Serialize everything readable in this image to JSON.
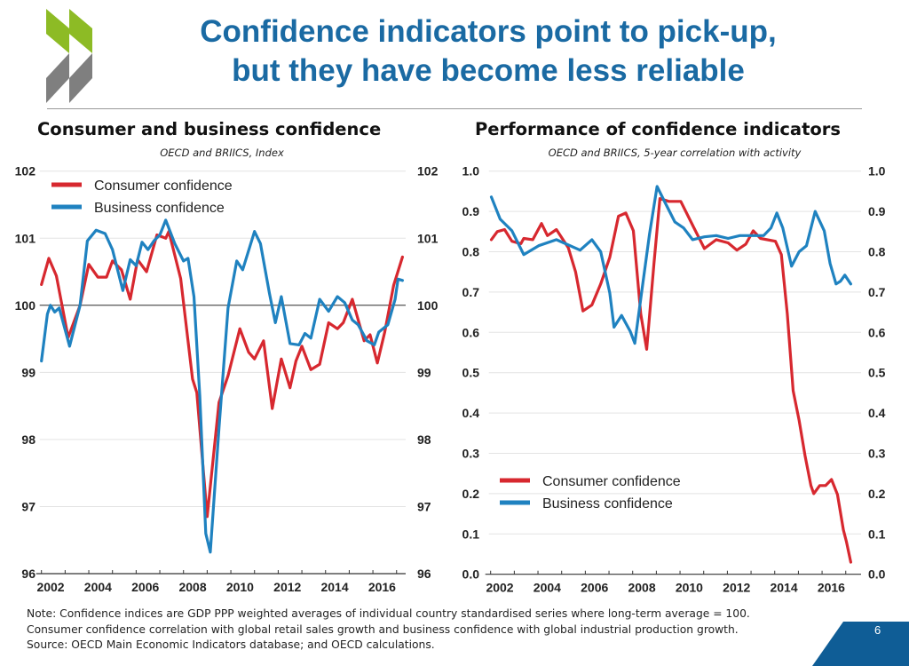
{
  "header": {
    "title_line1": "Confidence indicators point to pick-up,",
    "title_line2": "but they have become less reliable",
    "logo_colors": {
      "green": "#8dbb25",
      "grey": "#7f7f7f"
    }
  },
  "footer": {
    "note_lines": [
      "Note: Confidence indices are GDP PPP weighted averages of individual country standardised series where long-term average = 100.",
      "Consumer confidence correlation with global retail sales growth and business confidence with global industrial production growth.",
      "Source: OECD Main Economic Indicators database; and OECD calculations."
    ],
    "page_number": "6"
  },
  "colors": {
    "consumer": "#d7282f",
    "business": "#1f82c0",
    "title": "#1a6aa3",
    "badge": "#0f5d96"
  },
  "chart_data": [
    {
      "type": "line",
      "title": "Consumer and business confidence",
      "subtitle": "OECD and BRIICS, Index",
      "ylim": [
        96,
        102
      ],
      "yticks": [
        "96",
        "97",
        "98",
        "99",
        "100",
        "101",
        "102"
      ],
      "xticks": [
        "2002",
        "2004",
        "2006",
        "2008",
        "2010",
        "2012",
        "2014",
        "2016"
      ],
      "reference_line": 100,
      "grid": true,
      "legend": "top-left",
      "series": [
        {
          "name": "Consumer confidence",
          "color": "#d7282f",
          "x": [
            2002.0,
            2002.31,
            2002.63,
            2003.13,
            2003.63,
            2004.0,
            2004.38,
            2004.75,
            2005.0,
            2005.38,
            2005.75,
            2006.06,
            2006.44,
            2006.88,
            2007.25,
            2007.38,
            2007.88,
            2008.38,
            2008.56,
            2009.0,
            2009.5,
            2009.88,
            2010.38,
            2010.75,
            2011.0,
            2011.38,
            2011.75,
            2012.13,
            2012.5,
            2012.75,
            2013.0,
            2013.38,
            2013.75,
            2014.13,
            2014.5,
            2014.75,
            2015.13,
            2015.63,
            2015.88,
            2016.19,
            2016.5,
            2016.88,
            2017.25
          ],
          "y": [
            100.31,
            100.7,
            100.44,
            99.52,
            100.0,
            100.61,
            100.42,
            100.42,
            100.66,
            100.53,
            100.09,
            100.68,
            100.5,
            101.05,
            101.0,
            101.1,
            100.4,
            98.9,
            98.7,
            96.85,
            98.55,
            98.95,
            99.65,
            99.3,
            99.2,
            99.47,
            98.46,
            99.2,
            98.77,
            99.17,
            99.39,
            99.04,
            99.12,
            99.74,
            99.65,
            99.74,
            100.09,
            99.47,
            99.56,
            99.14,
            99.6,
            100.3,
            100.72
          ]
        },
        {
          "name": "Business confidence",
          "color": "#1f82c0",
          "x": [
            2002.0,
            2002.25,
            2002.38,
            2002.56,
            2002.75,
            2003.19,
            2003.63,
            2003.94,
            2004.31,
            2004.69,
            2005.0,
            2005.44,
            2005.75,
            2006.0,
            2006.25,
            2006.5,
            2006.75,
            2007.0,
            2007.25,
            2007.63,
            2008.0,
            2008.19,
            2008.44,
            2008.69,
            2008.94,
            2009.13,
            2009.5,
            2009.88,
            2010.25,
            2010.5,
            2011.0,
            2011.25,
            2011.63,
            2011.88,
            2012.13,
            2012.5,
            2012.88,
            2013.13,
            2013.38,
            2013.75,
            2014.13,
            2014.5,
            2014.81,
            2015.13,
            2015.38,
            2015.75,
            2016.06,
            2016.25,
            2016.63,
            2016.94,
            2017.06,
            2017.25
          ],
          "y": [
            99.17,
            99.87,
            100.0,
            99.9,
            99.96,
            99.39,
            100.0,
            100.96,
            101.12,
            101.07,
            100.83,
            100.22,
            100.68,
            100.59,
            100.94,
            100.83,
            100.96,
            101.05,
            101.27,
            100.92,
            100.66,
            100.7,
            100.13,
            98.64,
            96.6,
            96.32,
            98.17,
            99.96,
            100.66,
            100.53,
            101.1,
            100.92,
            100.18,
            99.74,
            100.13,
            99.43,
            99.41,
            99.58,
            99.51,
            100.09,
            99.91,
            100.13,
            100.04,
            99.78,
            99.71,
            99.47,
            99.41,
            99.6,
            99.71,
            100.09,
            100.39,
            100.37
          ]
        }
      ]
    },
    {
      "type": "line",
      "title": "Performance of confidence indicators",
      "subtitle": "OECD and BRIICS, 5-year correlation with activity",
      "ylim": [
        0,
        1
      ],
      "yticks": [
        "0.0",
        "0.1",
        "0.2",
        "0.3",
        "0.4",
        "0.5",
        "0.6",
        "0.7",
        "0.8",
        "0.9",
        "1.0"
      ],
      "xticks": [
        "2002",
        "2004",
        "2006",
        "2008",
        "2010",
        "2012",
        "2014",
        "2016"
      ],
      "grid": true,
      "legend": "bottom-left",
      "series": [
        {
          "name": "Consumer confidence",
          "color": "#d7282f",
          "x": [
            2002.03,
            2002.28,
            2002.59,
            2002.9,
            2003.28,
            2003.4,
            2003.78,
            2004.15,
            2004.4,
            2004.78,
            2005.28,
            2005.59,
            2005.9,
            2006.28,
            2006.65,
            2007.03,
            2007.4,
            2007.71,
            2008.03,
            2008.34,
            2008.59,
            2008.9,
            2009.15,
            2009.53,
            2010.03,
            2010.53,
            2011.03,
            2011.53,
            2012.03,
            2012.4,
            2012.78,
            2013.09,
            2013.4,
            2014.03,
            2014.28,
            2014.53,
            2014.78,
            2015.03,
            2015.28,
            2015.53,
            2015.65,
            2015.9,
            2016.15,
            2016.4,
            2016.65,
            2016.9,
            2017.03,
            2017.21
          ],
          "y": [
            0.83,
            0.85,
            0.855,
            0.826,
            0.82,
            0.833,
            0.83,
            0.87,
            0.84,
            0.855,
            0.81,
            0.75,
            0.653,
            0.668,
            0.72,
            0.786,
            0.888,
            0.896,
            0.852,
            0.646,
            0.558,
            0.771,
            0.932,
            0.925,
            0.925,
            0.866,
            0.808,
            0.83,
            0.822,
            0.804,
            0.819,
            0.852,
            0.833,
            0.826,
            0.793,
            0.646,
            0.455,
            0.382,
            0.294,
            0.22,
            0.2,
            0.22,
            0.22,
            0.235,
            0.198,
            0.11,
            0.08,
            0.03
          ]
        },
        {
          "name": "Business confidence",
          "color": "#1f82c0",
          "x": [
            2002.03,
            2002.4,
            2002.9,
            2003.4,
            2004.03,
            2004.78,
            2005.78,
            2006.28,
            2006.65,
            2007.03,
            2007.21,
            2007.53,
            2007.9,
            2008.09,
            2008.34,
            2008.71,
            2009.03,
            2009.4,
            2009.78,
            2010.15,
            2010.53,
            2011.03,
            2011.53,
            2012.03,
            2012.53,
            2013.53,
            2013.84,
            2014.09,
            2014.34,
            2014.71,
            2015.03,
            2015.34,
            2015.71,
            2016.09,
            2016.34,
            2016.59,
            2016.78,
            2016.96,
            2017.21
          ],
          "y": [
            0.936,
            0.881,
            0.852,
            0.793,
            0.815,
            0.83,
            0.804,
            0.83,
            0.8,
            0.698,
            0.613,
            0.642,
            0.602,
            0.573,
            0.683,
            0.844,
            0.962,
            0.918,
            0.874,
            0.859,
            0.83,
            0.837,
            0.84,
            0.833,
            0.84,
            0.84,
            0.859,
            0.896,
            0.859,
            0.764,
            0.8,
            0.815,
            0.9,
            0.852,
            0.771,
            0.72,
            0.727,
            0.742,
            0.72
          ]
        }
      ]
    }
  ]
}
